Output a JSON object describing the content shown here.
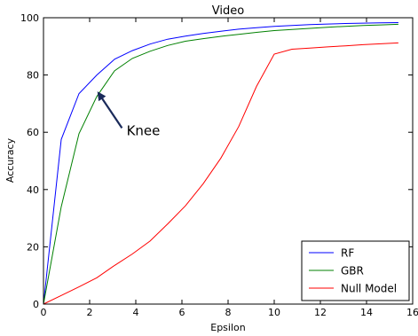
{
  "chart_data": {
    "type": "line",
    "title": "Video",
    "xlabel": "Epsilon",
    "ylabel": "Accuracy",
    "xlim": [
      0,
      16
    ],
    "ylim": [
      0,
      100
    ],
    "xticks": [
      0,
      2,
      4,
      6,
      8,
      10,
      12,
      14,
      16
    ],
    "yticks": [
      0,
      20,
      40,
      60,
      80,
      100
    ],
    "xtick_labels": [
      "0",
      "2",
      "4",
      "6",
      "8",
      "10",
      "12",
      "14",
      "16"
    ],
    "ytick_labels": [
      "0",
      "20",
      "40",
      "60",
      "80",
      "100"
    ],
    "grid": false,
    "legend_position": "lower-right",
    "series": [
      {
        "name": "RF",
        "color": "#0000ff",
        "x": [
          0,
          0.77,
          1.54,
          2.31,
          3.08,
          3.85,
          4.62,
          5.38,
          6.15,
          6.92,
          7.69,
          8.46,
          9.23,
          10.0,
          10.77,
          11.54,
          12.31,
          13.08,
          13.85,
          14.62,
          15.38
        ],
        "y": [
          0,
          57.5,
          73.5,
          80.0,
          85.5,
          88.5,
          90.8,
          92.5,
          93.6,
          94.5,
          95.3,
          96.0,
          96.5,
          97.0,
          97.3,
          97.6,
          97.8,
          98.0,
          98.1,
          98.2,
          98.3
        ]
      },
      {
        "name": "GBR",
        "color": "#008000",
        "x": [
          0,
          0.77,
          1.54,
          2.31,
          3.08,
          3.85,
          4.62,
          5.38,
          6.15,
          6.92,
          7.69,
          8.46,
          9.23,
          10.0,
          10.77,
          11.54,
          12.31,
          13.08,
          13.85,
          14.62,
          15.38
        ],
        "y": [
          0,
          34.0,
          59.5,
          72.5,
          81.5,
          85.8,
          88.3,
          90.3,
          91.8,
          92.7,
          93.5,
          94.2,
          94.9,
          95.5,
          95.9,
          96.3,
          96.7,
          97.0,
          97.3,
          97.5,
          97.7
        ]
      },
      {
        "name": "Null Model",
        "color": "#ff0000",
        "x": [
          0,
          0.77,
          1.54,
          2.31,
          3.08,
          3.85,
          4.62,
          5.38,
          6.15,
          6.92,
          7.69,
          8.46,
          9.23,
          10.0,
          10.77,
          11.54,
          12.31,
          13.08,
          13.85,
          14.62,
          15.38
        ],
        "y": [
          0,
          3.0,
          6.0,
          9.2,
          13.5,
          17.5,
          22.0,
          28.0,
          34.3,
          42.0,
          51.0,
          62.0,
          76.0,
          87.3,
          89.0,
          89.4,
          89.8,
          90.2,
          90.6,
          90.9,
          91.2
        ]
      }
    ],
    "annotations": [
      {
        "text": "Knee",
        "arrow_to": [
          2.4,
          73.5
        ],
        "arrow_from": [
          3.4,
          61.5
        ],
        "text_at": [
          3.6,
          59
        ],
        "arrow_color": "#1a2a5a"
      }
    ]
  }
}
